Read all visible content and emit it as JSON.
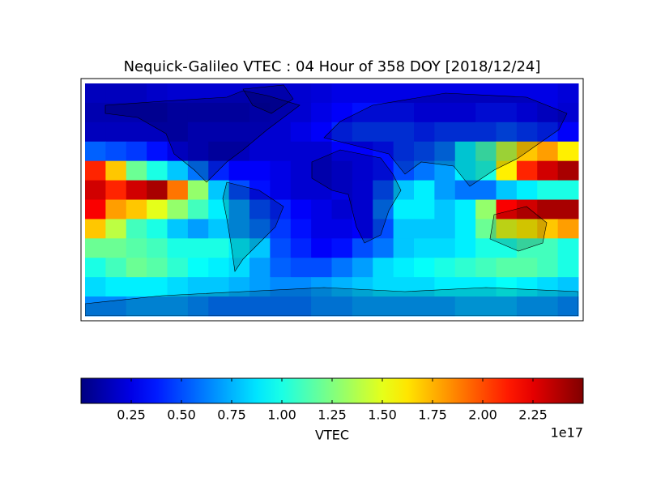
{
  "chart_data": {
    "type": "heatmap",
    "title": "Nequick-Galileo VTEC : 04 Hour of 358 DOY [2018/12/24]",
    "values": [
      [
        0.15,
        0.15,
        0.15,
        0.18,
        0.2,
        0.2,
        0.2,
        0.2,
        0.2,
        0.2,
        0.2,
        0.22,
        0.25,
        0.25,
        0.25,
        0.25,
        0.25,
        0.25,
        0.25,
        0.25,
        0.25,
        0.25,
        0.25,
        0.22
      ],
      [
        0.12,
        0.12,
        0.12,
        0.12,
        0.15,
        0.15,
        0.15,
        0.15,
        0.18,
        0.2,
        0.2,
        0.25,
        0.3,
        0.35,
        0.35,
        0.35,
        0.3,
        0.3,
        0.3,
        0.35,
        0.35,
        0.3,
        0.25,
        0.2
      ],
      [
        0.15,
        0.15,
        0.15,
        0.15,
        0.15,
        0.2,
        0.2,
        0.2,
        0.2,
        0.2,
        0.25,
        0.3,
        0.4,
        0.45,
        0.45,
        0.45,
        0.4,
        0.45,
        0.45,
        0.45,
        0.5,
        0.45,
        0.4,
        0.3
      ],
      [
        0.55,
        0.5,
        0.45,
        0.35,
        0.25,
        0.2,
        0.15,
        0.15,
        0.2,
        0.2,
        0.2,
        0.2,
        0.3,
        0.3,
        0.35,
        0.45,
        0.5,
        0.6,
        0.9,
        1.1,
        1.4,
        1.7,
        1.8,
        1.6
      ],
      [
        2.1,
        1.7,
        1.2,
        1.0,
        0.8,
        0.6,
        0.4,
        0.3,
        0.3,
        0.25,
        0.2,
        0.2,
        0.25,
        0.3,
        0.35,
        0.5,
        0.6,
        0.7,
        0.9,
        1.0,
        1.6,
        2.1,
        2.3,
        2.4
      ],
      [
        2.3,
        2.1,
        2.3,
        2.4,
        1.9,
        1.3,
        0.8,
        0.5,
        0.35,
        0.25,
        0.2,
        0.2,
        0.25,
        0.3,
        0.5,
        0.8,
        0.9,
        0.7,
        0.6,
        0.6,
        0.8,
        0.9,
        1.0,
        1.0
      ],
      [
        2.2,
        1.8,
        1.7,
        1.5,
        1.3,
        1.1,
        0.9,
        0.7,
        0.5,
        0.4,
        0.3,
        0.25,
        0.2,
        0.3,
        0.6,
        0.9,
        0.9,
        0.8,
        0.9,
        1.3,
        2.2,
        2.3,
        2.4,
        2.4
      ],
      [
        1.7,
        1.4,
        1.1,
        1.0,
        0.8,
        0.7,
        0.8,
        0.7,
        0.6,
        0.45,
        0.35,
        0.25,
        0.25,
        0.3,
        0.5,
        0.8,
        0.8,
        0.8,
        0.9,
        1.2,
        1.5,
        1.6,
        1.7,
        1.8
      ],
      [
        1.2,
        1.2,
        1.15,
        1.1,
        1.0,
        1.0,
        1.0,
        0.9,
        0.8,
        0.5,
        0.4,
        0.3,
        0.35,
        0.5,
        0.6,
        0.8,
        0.85,
        0.85,
        0.9,
        1.0,
        1.0,
        1.1,
        1.1,
        1.0
      ],
      [
        1.0,
        1.1,
        1.2,
        1.15,
        1.05,
        0.95,
        0.9,
        0.85,
        0.7,
        0.55,
        0.5,
        0.5,
        0.6,
        0.7,
        0.85,
        0.9,
        0.95,
        1.0,
        1.05,
        1.1,
        1.15,
        1.15,
        1.1,
        1.0
      ],
      [
        0.85,
        0.9,
        0.9,
        0.9,
        0.85,
        0.8,
        0.8,
        0.75,
        0.7,
        0.65,
        0.65,
        0.7,
        0.75,
        0.8,
        0.85,
        0.85,
        0.85,
        0.9,
        0.9,
        0.9,
        0.95,
        0.9,
        0.85,
        0.8
      ],
      [
        0.65,
        0.65,
        0.7,
        0.7,
        0.7,
        0.65,
        0.6,
        0.6,
        0.6,
        0.6,
        0.6,
        0.65,
        0.65,
        0.7,
        0.7,
        0.7,
        0.7,
        0.7,
        0.75,
        0.75,
        0.75,
        0.7,
        0.7,
        0.65
      ]
    ],
    "colorbar": {
      "label": "VTEC",
      "offset": "1e17",
      "lim": [
        0,
        2.5
      ],
      "ticks": [
        0.25,
        {
          "value": 0.5,
          "label": "0.50"
        },
        0.75,
        {
          "value": 1,
          "label": "1.00"
        },
        1.25,
        {
          "value": 1.5,
          "label": "1.50"
        },
        1.75,
        {
          "value": 2,
          "label": "2.00"
        },
        2.25
      ]
    },
    "colormap": "jet"
  }
}
